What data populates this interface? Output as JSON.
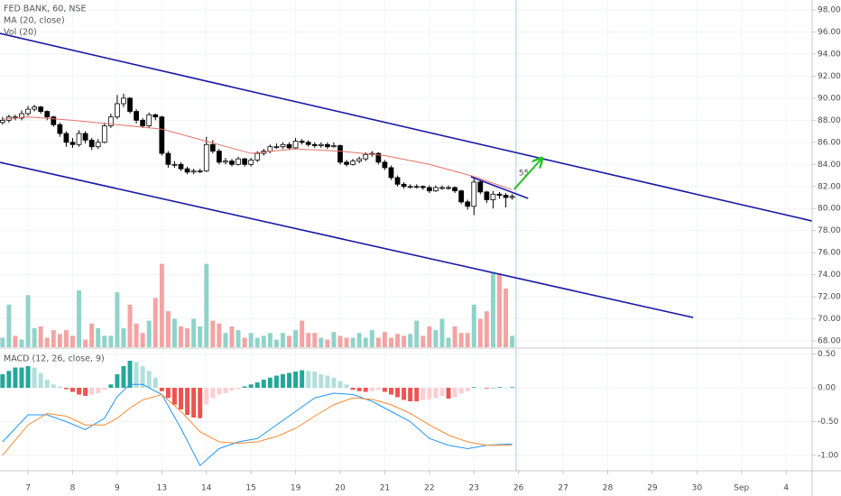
{
  "chart_data": {
    "type": "candlestick",
    "title": "FED BANK, 60, NSE",
    "x": [
      -4,
      -3,
      -2,
      -1,
      0,
      1,
      2,
      3,
      4,
      5,
      6,
      7,
      8,
      9,
      10,
      11,
      12,
      13,
      14,
      15,
      16,
      17,
      18,
      19,
      20,
      21,
      22,
      23,
      24,
      25,
      26,
      27,
      28,
      29,
      30,
      31,
      32,
      33,
      34,
      35,
      36,
      37,
      38,
      39,
      40,
      41,
      42,
      43,
      44,
      45,
      46,
      47,
      48,
      49,
      50,
      51,
      52,
      53,
      54,
      55,
      56,
      57,
      58,
      59,
      60,
      61,
      62,
      63,
      64,
      65,
      66,
      67,
      68,
      69,
      70,
      71,
      72,
      73,
      74,
      75,
      76
    ],
    "open": [
      87.8,
      88.0,
      88.3,
      88.2,
      88.6,
      89.0,
      89.2,
      88.8,
      88.3,
      87.6,
      86.8,
      86.0,
      85.8,
      86.8,
      86.2,
      85.6,
      86.0,
      87.5,
      88.3,
      89.5,
      90.0,
      88.8,
      88.0,
      87.5,
      88.5,
      88.3,
      85.0,
      84.0,
      84.0,
      83.6,
      83.3,
      83.4,
      83.4,
      85.8,
      85.2,
      84.2,
      84.3,
      84.0,
      84.5,
      84.0,
      84.4,
      85.0,
      85.2,
      85.6,
      85.6,
      85.8,
      85.5,
      86.1,
      86.0,
      85.8,
      85.7,
      85.8,
      85.6,
      85.7,
      84.2,
      84.0,
      84.3,
      84.5,
      84.9,
      85.0,
      84.2,
      83.7,
      82.8,
      82.2,
      82.0,
      82.0,
      82.0,
      81.9,
      81.6,
      81.9,
      81.9,
      81.9,
      81.6,
      80.6,
      80.2,
      82.4,
      81.5,
      80.8,
      81.3,
      81.2,
      81.0
    ],
    "high": [
      88.3,
      88.5,
      88.5,
      88.9,
      89.3,
      89.4,
      89.3,
      88.9,
      88.4,
      87.8,
      87.0,
      86.4,
      87.1,
      87.0,
      86.4,
      86.3,
      87.8,
      88.6,
      90.3,
      90.4,
      90.1,
      89.0,
      88.2,
      88.7,
      88.6,
      88.4,
      85.2,
      84.3,
      84.2,
      83.8,
      83.6,
      83.6,
      86.5,
      86.2,
      85.4,
      84.6,
      84.5,
      84.7,
      84.6,
      84.6,
      85.2,
      85.4,
      85.8,
      85.9,
      86.0,
      86.0,
      86.4,
      86.3,
      86.2,
      86.0,
      86.0,
      86.0,
      86.0,
      85.8,
      84.4,
      84.5,
      84.7,
      85.1,
      85.2,
      85.1,
      84.4,
      83.9,
      83.0,
      82.4,
      82.2,
      82.2,
      82.1,
      82.1,
      82.1,
      82.1,
      82.1,
      82.0,
      81.7,
      80.8,
      82.8,
      82.6,
      81.6,
      81.6,
      81.5,
      81.4,
      81.3
    ],
    "low": [
      87.6,
      87.8,
      88.0,
      88.0,
      88.4,
      88.8,
      88.6,
      88.0,
      87.4,
      86.5,
      85.6,
      85.5,
      85.6,
      85.9,
      85.3,
      85.4,
      85.9,
      87.3,
      88.1,
      89.2,
      88.6,
      87.7,
      87.3,
      87.3,
      88.0,
      84.8,
      83.7,
      83.7,
      83.4,
      83.1,
      83.1,
      83.2,
      83.3,
      85.0,
      84.0,
      84.0,
      83.8,
      83.9,
      83.8,
      83.8,
      84.2,
      84.8,
      85.0,
      85.4,
      85.4,
      85.3,
      85.4,
      85.8,
      85.6,
      85.5,
      85.5,
      85.4,
      85.5,
      84.0,
      83.8,
      83.9,
      84.1,
      84.3,
      84.7,
      84.0,
      83.5,
      82.6,
      82.0,
      81.8,
      81.8,
      81.8,
      81.7,
      81.4,
      81.5,
      81.7,
      81.7,
      81.4,
      80.4,
      79.9,
      79.4,
      81.3,
      80.5,
      80.0,
      80.9,
      80.1,
      80.8
    ],
    "close": [
      88.0,
      88.3,
      88.2,
      88.6,
      89.0,
      89.2,
      88.8,
      88.3,
      87.6,
      86.8,
      86.0,
      85.8,
      86.8,
      86.2,
      85.6,
      86.0,
      87.5,
      88.3,
      89.5,
      90.0,
      88.8,
      88.0,
      87.5,
      88.5,
      88.3,
      85.0,
      84.0,
      84.0,
      83.6,
      83.3,
      83.4,
      83.4,
      85.8,
      85.2,
      84.2,
      84.3,
      84.0,
      84.5,
      84.0,
      84.4,
      85.0,
      85.2,
      85.6,
      85.6,
      85.8,
      85.5,
      86.1,
      86.0,
      85.8,
      85.7,
      85.8,
      85.6,
      85.7,
      84.2,
      84.0,
      84.3,
      84.5,
      84.9,
      85.0,
      84.2,
      83.7,
      82.8,
      82.2,
      82.0,
      82.0,
      82.0,
      81.9,
      81.6,
      81.9,
      81.9,
      81.9,
      81.6,
      80.6,
      80.2,
      82.4,
      81.5,
      80.8,
      81.3,
      81.2,
      81.0,
      81.1
    ],
    "up_color": "#ffffff",
    "down_color": "#000000",
    "border_color": "#000000",
    "ma": {
      "name": "MA (20, close)",
      "color": "#e57368",
      "x": [
        -4,
        0,
        7,
        14,
        21,
        28,
        35,
        42,
        49,
        56,
        63,
        70,
        76
      ],
      "values": [
        88.1,
        88.3,
        88.0,
        87.6,
        87.2,
        86.1,
        85.0,
        85.4,
        85.2,
        84.8,
        84.0,
        82.9,
        81.7
      ]
    },
    "volume": {
      "name": "Vol (20)",
      "lim": [
        0,
        100
      ],
      "up_color": "#8fd3c9",
      "down_color": "#f4a3a3",
      "values": [
        10,
        45,
        12,
        8,
        55,
        20,
        22,
        10,
        18,
        14,
        18,
        12,
        60,
        8,
        25,
        20,
        12,
        12,
        58,
        20,
        45,
        25,
        15,
        28,
        52,
        88,
        38,
        30,
        22,
        20,
        30,
        22,
        88,
        28,
        25,
        15,
        22,
        18,
        10,
        15,
        10,
        12,
        15,
        8,
        15,
        12,
        18,
        28,
        15,
        15,
        10,
        8,
        16,
        12,
        10,
        10,
        15,
        10,
        18,
        10,
        16,
        10,
        14,
        12,
        14,
        28,
        12,
        22,
        18,
        30,
        10,
        22,
        15,
        15,
        45,
        30,
        38,
        78,
        78,
        62,
        12
      ]
    },
    "xlim": [
      -4.4,
      123.08
    ],
    "xticks": [
      {
        "value": 0,
        "label": "7"
      },
      {
        "value": 7,
        "label": "8"
      },
      {
        "value": 14,
        "label": "9"
      },
      {
        "value": 21,
        "label": "13"
      },
      {
        "value": 28,
        "label": "14"
      },
      {
        "value": 35,
        "label": "15"
      },
      {
        "value": 42,
        "label": "19"
      },
      {
        "value": 49,
        "label": "20"
      },
      {
        "value": 56,
        "label": "21"
      },
      {
        "value": 63,
        "label": "22"
      },
      {
        "value": 70,
        "label": "23"
      },
      {
        "value": 77,
        "label": "26"
      },
      {
        "value": 84,
        "label": "27"
      },
      {
        "value": 91,
        "label": "28"
      },
      {
        "value": 98,
        "label": "29"
      },
      {
        "value": 105,
        "label": "30"
      },
      {
        "value": 112,
        "label": "Sep"
      },
      {
        "value": 119,
        "label": "4"
      }
    ],
    "ylim": [
      67.43,
      98.9
    ],
    "yticks": [
      {
        "value": 68,
        "label": "68.00"
      },
      {
        "value": 70,
        "label": "70.00"
      },
      {
        "value": 72,
        "label": "72.00"
      },
      {
        "value": 74,
        "label": "74.00"
      },
      {
        "value": 76,
        "label": "76.00"
      },
      {
        "value": 78,
        "label": "78.00"
      },
      {
        "value": 80,
        "label": "80.00"
      },
      {
        "value": 82,
        "label": "82.00"
      },
      {
        "value": 84,
        "label": "84.00"
      },
      {
        "value": 86,
        "label": "86.00"
      },
      {
        "value": 88,
        "label": "88.00"
      },
      {
        "value": 90,
        "label": "90.00"
      },
      {
        "value": 92,
        "label": "92.00"
      },
      {
        "value": 94,
        "label": "94.00"
      },
      {
        "value": 96,
        "label": "96.00"
      },
      {
        "value": 98,
        "label": "98.00"
      }
    ],
    "grid": true,
    "drawings": [
      {
        "color": "#1a1aa8",
        "x": [
          -4.4,
          123.08
        ],
        "y": [
          95.87,
          78.87
        ]
      },
      {
        "color": "#1a1aa8",
        "x": [
          -4.4,
          104.4
        ],
        "y": [
          84.18,
          70.12
        ]
      },
      {
        "color": "#1a1aa8",
        "x": [
          69.5,
          78.5
        ],
        "y": [
          82.88,
          80.92
        ]
      },
      {
        "color": "#22c422",
        "x": [
          76.3,
          80.6
        ],
        "y": [
          81.74,
          84.51
        ],
        "arrow": true
      }
    ],
    "cursor": {
      "x": 76.6,
      "color": "#a9c8e0",
      "label": "55"
    },
    "macd": {
      "name": "MACD (12, 26, close, 9)",
      "ylim": [
        -1.227,
        0.587
      ],
      "yticks": [
        {
          "value": 0.5,
          "label": "0.50"
        },
        {
          "value": 0,
          "label": "0.00"
        },
        {
          "value": -0.5,
          "label": "-0.50"
        },
        {
          "value": -1,
          "label": "-1.00"
        }
      ],
      "histogram": {
        "colors": {
          "up_grow": "#26a69a",
          "up_fall": "#b2dfdb",
          "down_grow": "#ef5350",
          "down_fall": "#ffcdd2"
        },
        "values": [
          0.2,
          0.25,
          0.3,
          0.3,
          0.32,
          0.3,
          0.22,
          0.12,
          0.05,
          0.02,
          -0.02,
          -0.06,
          -0.1,
          -0.12,
          -0.1,
          -0.08,
          -0.03,
          0.05,
          0.2,
          0.32,
          0.4,
          0.38,
          0.32,
          0.25,
          0.15,
          -0.05,
          -0.15,
          -0.25,
          -0.32,
          -0.4,
          -0.44,
          -0.45,
          -0.25,
          -0.15,
          -0.1,
          -0.08,
          -0.04,
          -0.02,
          0.02,
          0.05,
          0.08,
          0.12,
          0.15,
          0.18,
          0.2,
          0.22,
          0.24,
          0.26,
          0.25,
          0.24,
          0.2,
          0.18,
          0.15,
          0.1,
          0.05,
          -0.03,
          -0.05,
          -0.06,
          -0.05,
          -0.03,
          -0.06,
          -0.1,
          -0.14,
          -0.18,
          -0.2,
          -0.2,
          -0.18,
          -0.17,
          -0.15,
          -0.12,
          -0.16,
          -0.14,
          -0.08,
          -0.05,
          0.01,
          0.0,
          -0.01,
          0.0,
          0.01,
          0.0,
          0.01
        ]
      },
      "macd_line": {
        "color": "#2196f3",
        "x": [
          -4,
          0,
          3,
          6,
          9,
          12,
          14,
          16,
          18,
          21,
          24,
          27,
          30,
          33,
          36,
          39,
          42,
          45,
          48,
          51,
          54,
          57,
          60,
          63,
          66,
          69,
          72,
          76
        ],
        "values": [
          -0.8,
          -0.4,
          -0.4,
          -0.5,
          -0.62,
          -0.45,
          -0.13,
          0.05,
          0.05,
          -0.1,
          -0.6,
          -1.15,
          -0.9,
          -0.8,
          -0.75,
          -0.55,
          -0.35,
          -0.15,
          -0.08,
          -0.1,
          -0.2,
          -0.35,
          -0.5,
          -0.75,
          -0.85,
          -0.9,
          -0.85,
          -0.83
        ]
      },
      "signal_line": {
        "color": "#ff8a30",
        "x": [
          -4,
          0,
          3,
          6,
          9,
          12,
          14,
          16,
          18,
          21,
          24,
          27,
          30,
          33,
          36,
          39,
          42,
          45,
          48,
          51,
          54,
          57,
          60,
          63,
          66,
          69,
          72,
          76
        ],
        "values": [
          -1.0,
          -0.55,
          -0.38,
          -0.42,
          -0.55,
          -0.55,
          -0.45,
          -0.3,
          -0.18,
          -0.1,
          -0.35,
          -0.65,
          -0.8,
          -0.82,
          -0.8,
          -0.72,
          -0.6,
          -0.42,
          -0.25,
          -0.15,
          -0.17,
          -0.25,
          -0.38,
          -0.55,
          -0.7,
          -0.8,
          -0.85,
          -0.85
        ]
      }
    }
  }
}
